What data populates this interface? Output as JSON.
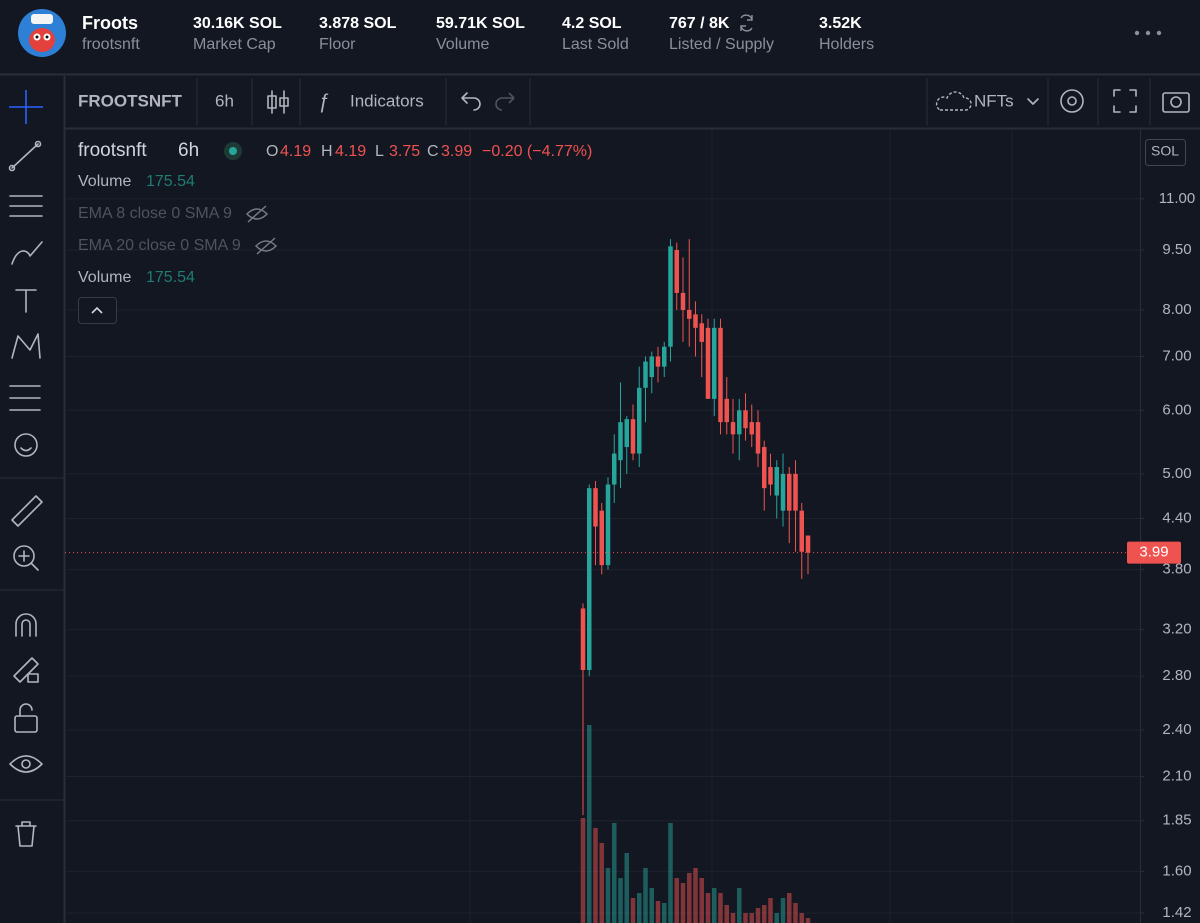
{
  "header": {
    "name": "Froots",
    "handle": "frootsnft",
    "stats": [
      {
        "value": "30.16K SOL",
        "label": "Market Cap"
      },
      {
        "value": "3.878 SOL",
        "label": "Floor"
      },
      {
        "value": "59.71K SOL",
        "label": "Volume"
      },
      {
        "value": "4.2 SOL",
        "label": "Last Sold"
      },
      {
        "value": "767 / 8K",
        "label": "Listed / Supply"
      },
      {
        "value": "3.52K",
        "label": "Holders"
      }
    ]
  },
  "toolbar": {
    "symbol": "FROOTSNFT",
    "interval": "6h",
    "indicators": "Indicators",
    "market": "NFTs"
  },
  "chart_data": {
    "type": "candlestick",
    "symbol": "frootsnft",
    "interval": "6h",
    "legend": [
      {
        "key": "O",
        "value": "4.19"
      },
      {
        "key": "H",
        "value": "4.19"
      },
      {
        "key": "L",
        "value": "3.75"
      },
      {
        "key": "C",
        "value": "3.99"
      }
    ],
    "change": "−0.20 (−4.77%)",
    "studies": [
      {
        "name": "Volume",
        "value": "175.54"
      },
      {
        "name": "EMA 8 close 0 SMA 9"
      },
      {
        "name": "EMA 20 close 0 SMA 9"
      },
      {
        "name": "Volume",
        "value": "175.54"
      }
    ],
    "currency": "SOL",
    "log_scale": true,
    "grid": true,
    "up_color": "#26a69a",
    "down_color": "#ef5350",
    "ylim": [
      1.38,
      13.4
    ],
    "yticks": [
      {
        "value": 11,
        "label": "11.00"
      },
      {
        "value": 9.5,
        "label": "9.50"
      },
      {
        "value": 8,
        "label": "8.00"
      },
      {
        "value": 7,
        "label": "7.00"
      },
      {
        "value": 6,
        "label": "6.00"
      },
      {
        "value": 5,
        "label": "5.00"
      },
      {
        "value": 4.4,
        "label": "4.40"
      },
      {
        "value": 3.8,
        "label": "3.80"
      },
      {
        "value": 3.2,
        "label": "3.20"
      },
      {
        "value": 2.8,
        "label": "2.80"
      },
      {
        "value": 2.4,
        "label": "2.40"
      },
      {
        "value": 2.1,
        "label": "2.10"
      },
      1.85,
      {
        "value": 1.6,
        "label": "1.60"
      },
      1.42
    ],
    "open": [
      3.4,
      2.85,
      4.8,
      4.5,
      3.85,
      4.85,
      5.2,
      5.4,
      5.85,
      5.3,
      6.4,
      6.6,
      7.0,
      6.8,
      7.2,
      9.5,
      8.4,
      8.0,
      7.9,
      7.7,
      7.6,
      6.2,
      7.6,
      6.2,
      5.8,
      5.6,
      6.0,
      5.8,
      5.8,
      5.4,
      5.1,
      4.7,
      4.5,
      5.0,
      5.0,
      4.5,
      4.19
    ],
    "high": [
      3.45,
      4.85,
      4.9,
      4.6,
      4.95,
      5.6,
      6.5,
      5.9,
      6.1,
      6.8,
      7.0,
      7.1,
      7.2,
      7.3,
      9.8,
      9.7,
      9.3,
      9.8,
      8.2,
      7.9,
      7.8,
      7.8,
      7.8,
      6.6,
      6.2,
      6.2,
      6.3,
      6.1,
      6.0,
      5.5,
      5.3,
      5.2,
      5.3,
      5.1,
      5.2,
      4.6,
      4.19
    ],
    "low": [
      1.88,
      2.8,
      3.85,
      3.75,
      3.8,
      4.6,
      4.8,
      5.0,
      5.2,
      5.1,
      5.8,
      6.3,
      6.5,
      6.6,
      6.9,
      8.0,
      7.3,
      7.2,
      7.0,
      6.6,
      6.2,
      5.9,
      5.6,
      5.6,
      5.3,
      5.2,
      5.5,
      5.4,
      5.1,
      4.5,
      4.7,
      4.4,
      4.3,
      4.1,
      4.0,
      3.7,
      3.75
    ],
    "close": [
      2.85,
      4.8,
      4.3,
      3.85,
      4.85,
      5.3,
      5.8,
      5.85,
      5.3,
      6.4,
      6.9,
      7.0,
      6.8,
      7.2,
      9.6,
      8.4,
      8.0,
      7.8,
      7.6,
      7.3,
      6.2,
      7.6,
      5.8,
      5.8,
      5.6,
      6.0,
      5.7,
      5.6,
      5.3,
      4.8,
      4.85,
      5.1,
      5.0,
      4.5,
      4.5,
      4.0,
      3.99
    ],
    "volume": [
      3675,
      6930,
      3325,
      2800,
      1925,
      3500,
      1575,
      2450,
      875,
      1050,
      1925,
      1225,
      770,
      700,
      3500,
      1575,
      1400,
      1750,
      1925,
      1575,
      1050,
      1225,
      1050,
      630,
      350,
      1225,
      350,
      350,
      525,
      630,
      875,
      350,
      875,
      1050,
      700,
      350,
      175.54
    ]
  }
}
